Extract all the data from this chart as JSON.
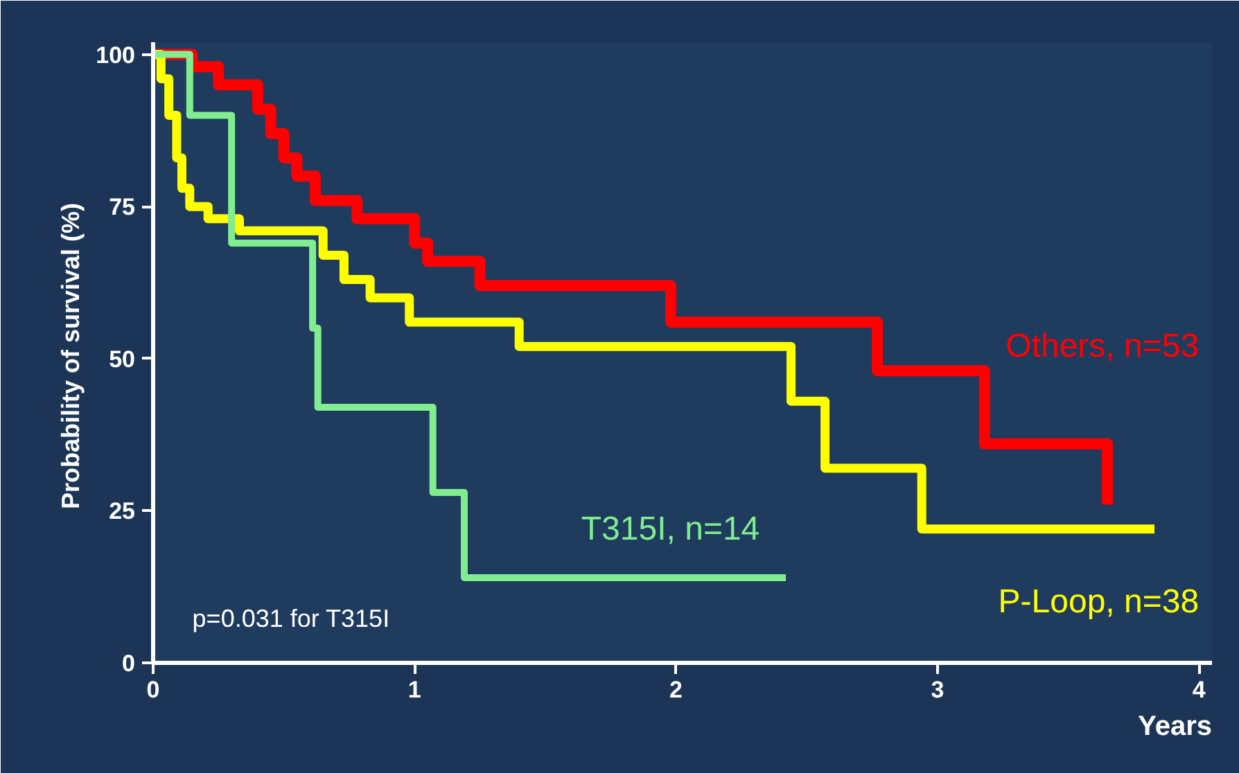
{
  "chart_data": {
    "type": "step",
    "xlabel": "Years",
    "ylabel": "Probability of survival  (%)",
    "xlim": [
      0,
      4.05
    ],
    "ylim": [
      0,
      102
    ],
    "xticks": [
      0,
      1,
      2,
      3,
      4
    ],
    "yticks": [
      0,
      25,
      50,
      75,
      100
    ],
    "grid": false,
    "marker": "none",
    "line_style": "solid",
    "series": [
      {
        "name": "Others, n=53",
        "color": "#ff0000",
        "x": [
          0,
          0.15,
          0.25,
          0.4,
          0.45,
          0.5,
          0.55,
          0.62,
          0.78,
          1.0,
          1.05,
          1.25,
          1.98,
          2.77,
          3.18,
          3.65,
          3.65
        ],
        "values": [
          100,
          98,
          95,
          91,
          87,
          83,
          80,
          76,
          73,
          69,
          66,
          62,
          56,
          48,
          36,
          36,
          26
        ]
      },
      {
        "name": "P-Loop, n=38",
        "color": "#ffff00",
        "x": [
          0,
          0.03,
          0.06,
          0.09,
          0.11,
          0.14,
          0.21,
          0.33,
          0.65,
          0.73,
          0.83,
          0.98,
          1.4,
          2.44,
          2.57,
          2.94,
          3.83
        ],
        "values": [
          100,
          96,
          90,
          83,
          78,
          75,
          73,
          71,
          67,
          63,
          60,
          56,
          52,
          43,
          32,
          22,
          22
        ]
      },
      {
        "name": "T315I, n=14",
        "color": "#80ee90",
        "x": [
          0,
          0.14,
          0.3,
          0.61,
          0.63,
          1.07,
          1.19,
          2.42
        ],
        "values": [
          100,
          90,
          69,
          55,
          42,
          28,
          14,
          14
        ]
      }
    ],
    "annotations": [
      "p=0.031 for T315I"
    ]
  }
}
